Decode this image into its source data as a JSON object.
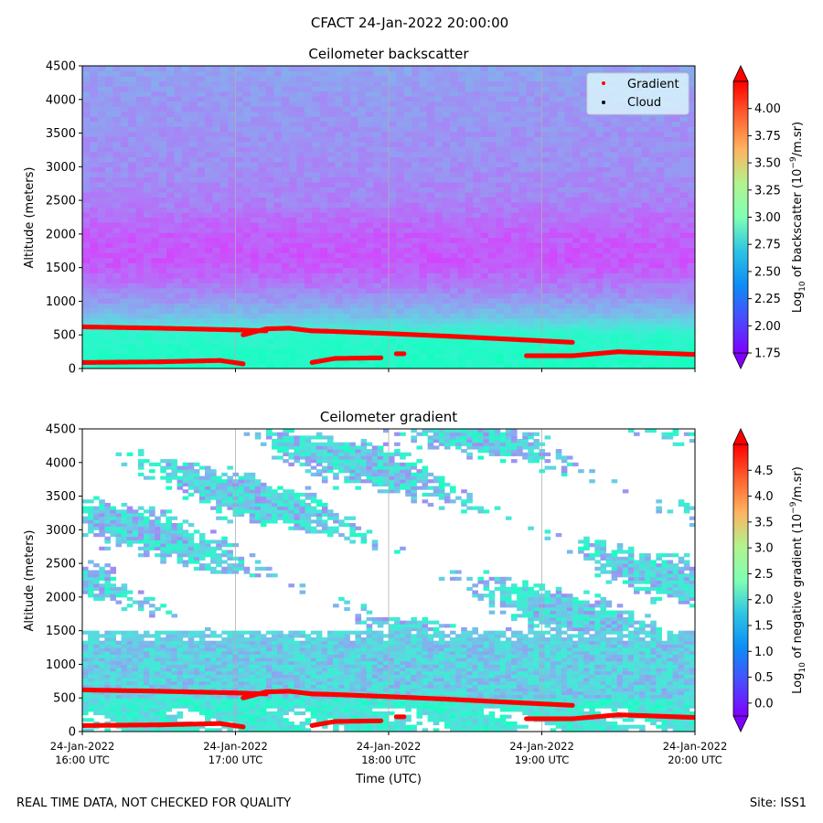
{
  "figure": {
    "suptitle": "CFACT 24-Jan-2022 20:00:00",
    "footer_left": "REAL TIME DATA, NOT CHECKED FOR QUALITY",
    "footer_right": "Site: ISS1",
    "xlabel": "Time (UTC)"
  },
  "colors": {
    "gradient_marker": "#ff0000",
    "cloud_marker": "#000000",
    "gridline": "#b0b0b0",
    "colormap": "rainbow"
  },
  "chart_data": [
    {
      "type": "heatmap",
      "title": "Ceilometer backscatter",
      "xlabel": "",
      "ylabel": "Altitude (meters)",
      "x_range": [
        "24-Jan-2022 16:00 UTC",
        "24-Jan-2022 20:00 UTC"
      ],
      "ylim": [
        0,
        4500
      ],
      "yticks": [
        0,
        500,
        1000,
        1500,
        2000,
        2500,
        3000,
        3500,
        4000,
        4500
      ],
      "grid": "vertical lines at hourly ticks",
      "legend": {
        "placement": "upper-right",
        "entries": [
          {
            "label": "Gradient",
            "color": "#ff0000"
          },
          {
            "label": "Cloud",
            "color": "#000000"
          }
        ]
      },
      "colorbar": {
        "label_prefix": "Log",
        "label_sub": "10",
        "label_mid": " of backscatter (10",
        "label_sup": "−9",
        "label_suffix": "/m.sr)",
        "range": [
          1.75,
          4.25
        ],
        "ticks": [
          "1.75",
          "2.00",
          "2.25",
          "2.50",
          "2.75",
          "3.00",
          "3.25",
          "3.50",
          "3.75",
          "4.00"
        ],
        "extend": "both"
      },
      "field_description": {
        "profile_altitudes_m": [
          0,
          150,
          300,
          450,
          550,
          650,
          800,
          1000,
          1300,
          1600,
          2000,
          2500,
          3000,
          3500,
          4000,
          4500
        ],
        "profile_values": [
          2.85,
          2.85,
          2.82,
          2.8,
          2.75,
          2.6,
          2.42,
          2.28,
          2.12,
          2.02,
          2.05,
          2.18,
          2.22,
          2.24,
          2.26,
          2.3
        ]
      },
      "gradient_points": [
        {
          "x": [
            16.0,
            16.5,
            17.0,
            17.2
          ],
          "y": [
            620,
            600,
            575,
            560
          ]
        },
        {
          "x": [
            17.05,
            17.2,
            17.35,
            17.5,
            17.6,
            18.0,
            18.4,
            19.2
          ],
          "y": [
            500,
            590,
            600,
            560,
            555,
            520,
            480,
            390
          ]
        },
        {
          "x": [
            16.0,
            16.5,
            16.9,
            17.05
          ],
          "y": [
            90,
            100,
            120,
            70
          ]
        },
        {
          "x": [
            17.5,
            17.65,
            17.95
          ],
          "y": [
            90,
            150,
            160
          ]
        },
        {
          "x": [
            18.05,
            18.1
          ],
          "y": [
            220,
            220
          ]
        },
        {
          "x": [
            18.9,
            19.2,
            19.5,
            20.0
          ],
          "y": [
            190,
            190,
            250,
            210
          ]
        }
      ]
    },
    {
      "type": "heatmap",
      "title": "Ceilometer gradient",
      "xlabel": "Time (UTC)",
      "ylabel": "Altitude (meters)",
      "x_range": [
        "24-Jan-2022 16:00 UTC",
        "24-Jan-2022 20:00 UTC"
      ],
      "xticks": [
        {
          "date": "24-Jan-2022",
          "time": "16:00 UTC"
        },
        {
          "date": "24-Jan-2022",
          "time": "17:00 UTC"
        },
        {
          "date": "24-Jan-2022",
          "time": "18:00 UTC"
        },
        {
          "date": "24-Jan-2022",
          "time": "19:00 UTC"
        },
        {
          "date": "24-Jan-2022",
          "time": "20:00 UTC"
        }
      ],
      "ylim": [
        0,
        4500
      ],
      "yticks": [
        0,
        500,
        1000,
        1500,
        2000,
        2500,
        3000,
        3500,
        4000,
        4500
      ],
      "grid": "vertical lines at hourly ticks",
      "colorbar": {
        "label_prefix": "Log",
        "label_sub": "10",
        "label_mid": " of negative gradient (10",
        "label_sup": "−9",
        "label_suffix": "/m.sr)",
        "range": [
          -0.25,
          5.0
        ],
        "ticks": [
          "0.0",
          "0.5",
          "1.0",
          "1.5",
          "2.0",
          "2.5",
          "3.0",
          "3.5",
          "4.0",
          "4.5"
        ],
        "extend": "both"
      }
    }
  ]
}
